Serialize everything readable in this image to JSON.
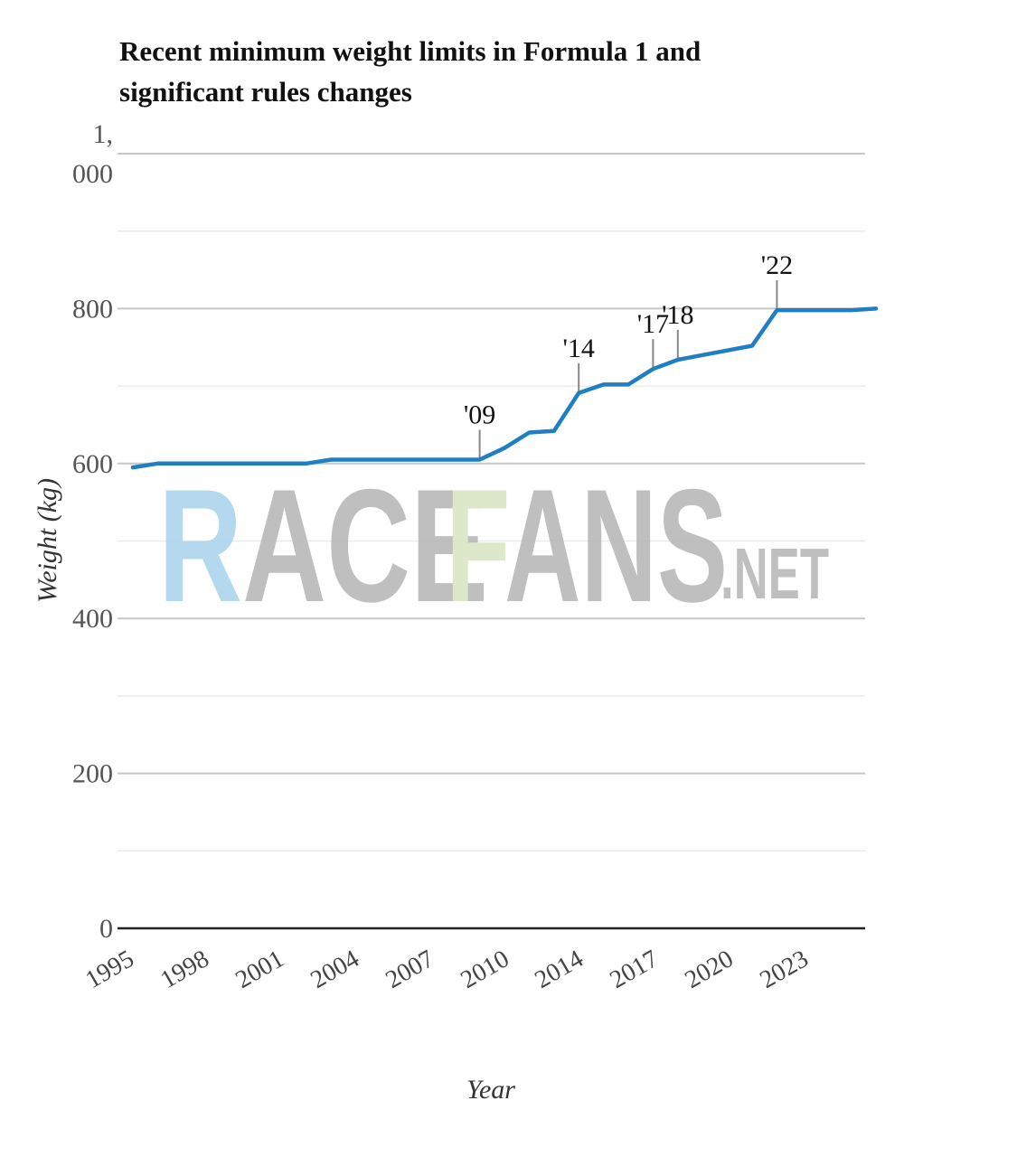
{
  "chart_data": {
    "type": "line",
    "title": "Recent minimum weight limits in Formula 1 and significant rules changes",
    "xlabel": "Year",
    "ylabel": "Weight (kg)",
    "ylim": [
      0,
      1000
    ],
    "y_ticks": [
      0,
      200,
      400,
      600,
      800,
      1000
    ],
    "y_tick_labels": [
      "0",
      "200",
      "400",
      "600",
      "800",
      "1,\n000"
    ],
    "x_tick_labels": [
      "1995",
      "1998",
      "2001",
      "2004",
      "2007",
      "2010",
      "2014",
      "2017",
      "2020",
      "2023"
    ],
    "grid": true,
    "series_color": "#1f7fc2",
    "x": [
      1995,
      1996,
      1997,
      1998,
      1999,
      2000,
      2001,
      2002,
      2003,
      2004,
      2005,
      2006,
      2007,
      2008,
      2009,
      2010,
      2011,
      2012,
      2013,
      2014,
      2015,
      2016,
      2017,
      2018,
      2019,
      2020,
      2021,
      2022,
      2023,
      2024,
      2025
    ],
    "values": [
      595,
      600,
      600,
      600,
      600,
      600,
      600,
      600,
      605,
      605,
      605,
      605,
      605,
      605,
      605,
      620,
      640,
      642,
      691,
      702,
      702,
      722,
      734,
      740,
      746,
      752,
      798,
      798,
      798,
      798,
      800
    ],
    "annotations": [
      {
        "label": "'09",
        "x": 2009,
        "value": 605
      },
      {
        "label": "'14",
        "x": 2013,
        "value": 691
      },
      {
        "label": "'17",
        "x": 2016,
        "value": 722
      },
      {
        "label": "'18",
        "x": 2017,
        "value": 734
      },
      {
        "label": "'22",
        "x": 2021,
        "value": 798
      }
    ]
  },
  "watermark": {
    "part1": "RACE",
    "part2": "FANS",
    "part3": ".NET",
    "colors": [
      "#a8d2ea",
      "#b5b5b5",
      "#d6e4c0"
    ]
  }
}
